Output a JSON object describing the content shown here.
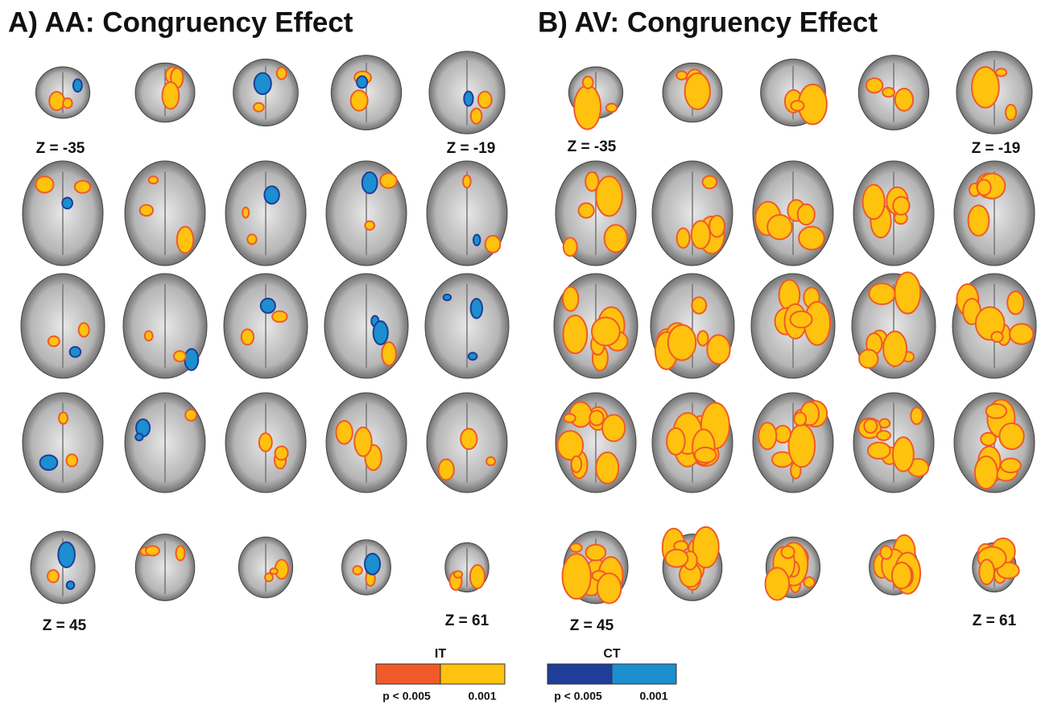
{
  "panels": [
    {
      "title": "A) AA: Congruency Effect",
      "slice_labels": [
        "Z = -35",
        "Z = -19",
        "Z = 45",
        "Z = 61"
      ]
    },
    {
      "title": "B) AV: Congruency Effect",
      "slice_labels": [
        "Z = -35",
        "Z = -19",
        "Z = 45",
        "Z = 61"
      ]
    }
  ],
  "legends": [
    {
      "label": "IT",
      "colors": [
        "#f05a28",
        "#ffc20e"
      ],
      "ticks": [
        "p < 0.005",
        "0.001"
      ]
    },
    {
      "label": "CT",
      "colors": [
        "#1f3d99",
        "#1b8fcf"
      ],
      "ticks": [
        "p < 0.005",
        "0.001"
      ]
    }
  ]
}
